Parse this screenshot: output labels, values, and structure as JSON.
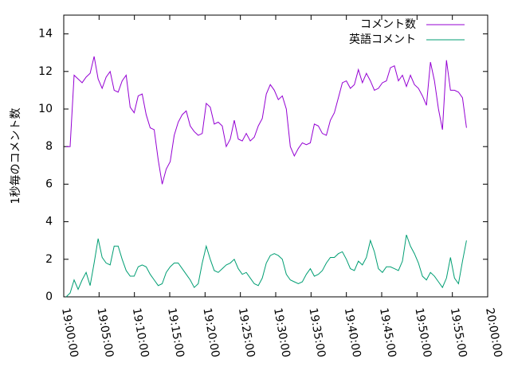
{
  "chart_data": {
    "type": "line",
    "ylabel": "1秒毎のコメント数",
    "xlim": [
      "19:00:00",
      "20:00:00"
    ],
    "xticks": [
      "19:00:00",
      "19:05:00",
      "19:10:00",
      "19:15:00",
      "19:20:00",
      "19:25:00",
      "19:30:00",
      "19:35:00",
      "19:40:00",
      "19:45:00",
      "19:50:00",
      "19:55:00",
      "20:00:00"
    ],
    "ylim": [
      0,
      15
    ],
    "yticks": [
      0,
      2,
      4,
      6,
      8,
      10,
      12,
      14
    ],
    "legend": "top-right",
    "x": [
      "19:00:20",
      "19:00:54",
      "19:01:28",
      "19:02:02",
      "19:02:36",
      "19:03:10",
      "19:03:44",
      "19:04:18",
      "19:04:52",
      "19:05:26",
      "19:06:00",
      "19:06:34",
      "19:07:08",
      "19:07:42",
      "19:08:16",
      "19:08:50",
      "19:09:24",
      "19:09:58",
      "19:10:32",
      "19:11:06",
      "19:11:40",
      "19:12:14",
      "19:12:48",
      "19:13:22",
      "19:13:56",
      "19:14:30",
      "19:15:04",
      "19:15:38",
      "19:16:12",
      "19:16:46",
      "19:17:20",
      "19:17:54",
      "19:18:28",
      "19:19:02",
      "19:19:36",
      "19:20:10",
      "19:20:44",
      "19:21:18",
      "19:21:52",
      "19:22:26",
      "19:23:00",
      "19:23:34",
      "19:24:08",
      "19:24:42",
      "19:25:16",
      "19:25:50",
      "19:26:24",
      "19:26:58",
      "19:27:32",
      "19:28:06",
      "19:28:40",
      "19:29:14",
      "19:29:48",
      "19:30:22",
      "19:30:56",
      "19:31:30",
      "19:32:04",
      "19:32:38",
      "19:33:12",
      "19:33:46",
      "19:34:20",
      "19:34:54",
      "19:35:28",
      "19:36:02",
      "19:36:36",
      "19:37:10",
      "19:37:44",
      "19:38:18",
      "19:38:52",
      "19:39:26",
      "19:40:00",
      "19:40:34",
      "19:41:08",
      "19:41:42",
      "19:42:16",
      "19:42:50",
      "19:43:24",
      "19:43:58",
      "19:44:32",
      "19:45:06",
      "19:45:40",
      "19:46:14",
      "19:46:48",
      "19:47:22",
      "19:47:56",
      "19:48:30",
      "19:49:04",
      "19:49:38",
      "19:50:12",
      "19:50:46",
      "19:51:20",
      "19:51:54",
      "19:52:28",
      "19:53:02",
      "19:53:36",
      "19:54:10",
      "19:54:44",
      "19:55:18",
      "19:55:52",
      "19:56:26",
      "19:57:00"
    ],
    "series": [
      {
        "name": "コメント数",
        "color": "#9400d3",
        "values": [
          8.0,
          8.0,
          11.8,
          11.6,
          11.4,
          11.7,
          11.9,
          12.8,
          11.6,
          11.1,
          11.7,
          12.0,
          11.0,
          10.9,
          11.5,
          11.8,
          10.1,
          9.8,
          10.7,
          10.8,
          9.7,
          9.0,
          8.9,
          7.3,
          6.0,
          6.8,
          7.2,
          8.6,
          9.3,
          9.7,
          9.9,
          9.1,
          8.8,
          8.6,
          8.7,
          10.3,
          10.1,
          9.2,
          9.3,
          9.1,
          8.0,
          8.4,
          9.4,
          8.4,
          8.3,
          8.7,
          8.3,
          8.5,
          9.1,
          9.5,
          10.8,
          11.3,
          11.0,
          10.5,
          10.7,
          10.0,
          8.0,
          7.5,
          7.9,
          8.2,
          8.1,
          8.2,
          9.2,
          9.1,
          8.7,
          8.6,
          9.4,
          9.8,
          10.6,
          11.4,
          11.5,
          11.1,
          11.3,
          12.1,
          11.4,
          11.9,
          11.5,
          11.0,
          11.1,
          11.4,
          11.5,
          12.2,
          12.3,
          11.5,
          11.8,
          11.2,
          11.8,
          11.3,
          11.1,
          10.7,
          10.2,
          12.5,
          11.5,
          10.0,
          8.9,
          12.6,
          11.0,
          11.0,
          10.9,
          10.6,
          9.0
        ]
      },
      {
        "name": "英語コメント",
        "color": "#009e73",
        "values": [
          0.0,
          0.2,
          0.9,
          0.4,
          0.9,
          1.3,
          0.6,
          1.8,
          3.1,
          2.1,
          1.8,
          1.7,
          2.7,
          2.7,
          2.0,
          1.4,
          1.1,
          1.1,
          1.6,
          1.7,
          1.6,
          1.2,
          0.9,
          0.6,
          0.7,
          1.3,
          1.6,
          1.8,
          1.8,
          1.5,
          1.2,
          0.9,
          0.5,
          0.7,
          1.8,
          2.7,
          2.0,
          1.4,
          1.3,
          1.5,
          1.7,
          1.8,
          2.0,
          1.5,
          1.2,
          1.3,
          1.0,
          0.7,
          0.6,
          1.0,
          1.8,
          2.2,
          2.3,
          2.2,
          2.0,
          1.2,
          0.9,
          0.8,
          0.7,
          0.8,
          1.2,
          1.5,
          1.1,
          1.2,
          1.4,
          1.8,
          2.1,
          2.1,
          2.3,
          2.4,
          2.0,
          1.5,
          1.4,
          1.9,
          1.7,
          2.1,
          3.0,
          2.4,
          1.5,
          1.3,
          1.6,
          1.6,
          1.5,
          1.4,
          1.9,
          3.3,
          2.7,
          2.3,
          1.8,
          1.1,
          0.9,
          1.3,
          1.1,
          0.8,
          0.5,
          1.0,
          2.1,
          1.0,
          0.7,
          1.9,
          3.0
        ]
      }
    ]
  }
}
